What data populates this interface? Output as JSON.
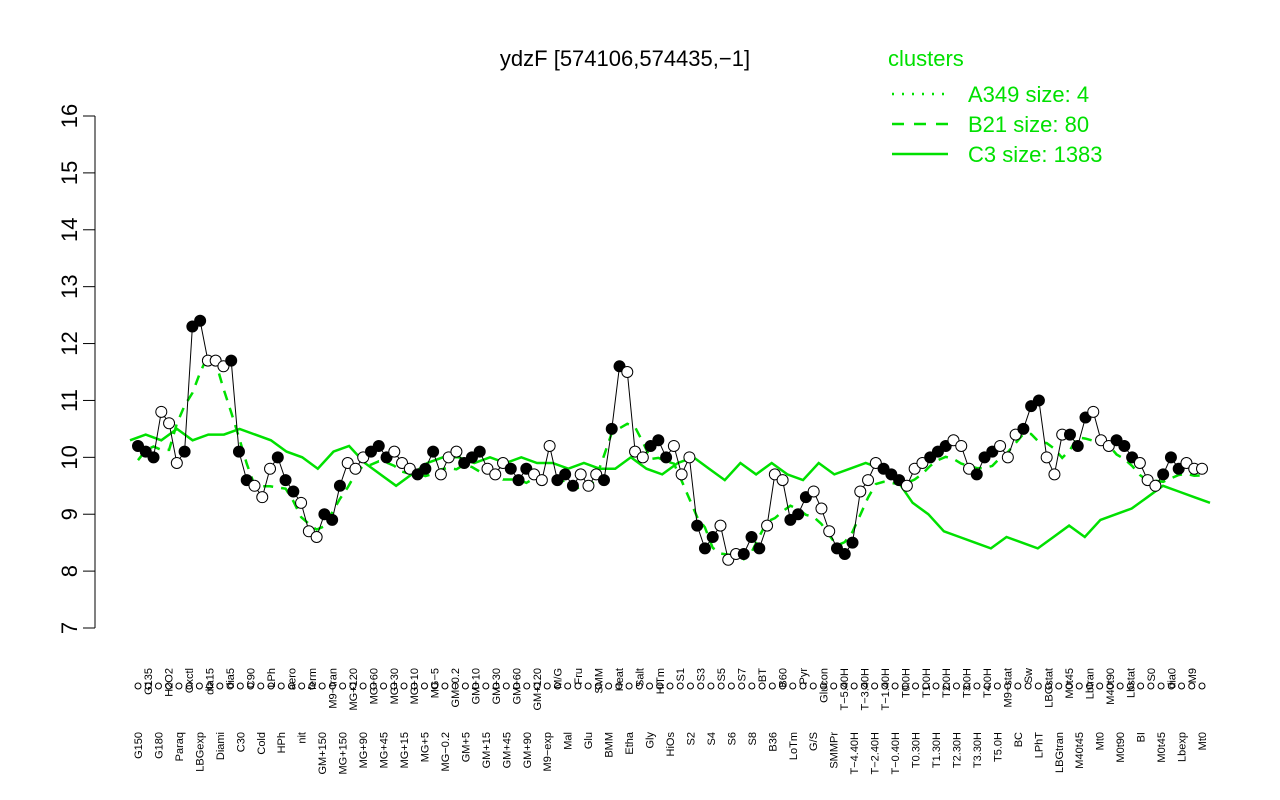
{
  "chart_data": {
    "type": "line",
    "title": "ydzF [574106,574435,−1]",
    "xlabel": "",
    "ylabel": "",
    "ylim": [
      7,
      16
    ],
    "yticks": [
      7,
      8,
      9,
      10,
      11,
      12,
      13,
      14,
      15,
      16
    ],
    "legend": {
      "title": "clusters",
      "placement": "top-right",
      "entries": [
        {
          "label": "A349 size: 4",
          "style": "dotted"
        },
        {
          "label": "B21 size: 80",
          "style": "dashed"
        },
        {
          "label": "C3 size: 1383",
          "style": "solid"
        }
      ]
    },
    "colors": {
      "series_line": "#00e000",
      "axis": "#000000",
      "point_stroke": "#000000"
    },
    "xtick_labels": [
      "G150",
      "G135",
      "G180",
      "H2O2",
      "Paraq",
      "Oxctl",
      "LBGexp",
      "dia15",
      "Diami",
      "dia5",
      "C30",
      "C90",
      "Cold",
      "LPh",
      "HPh",
      "aero",
      "nit",
      "ferm",
      "GM+150",
      "M9−tran",
      "MG+150",
      "MG+120",
      "MG+90",
      "MG+60",
      "MG+45",
      "MG+30",
      "MG+15",
      "MG+10",
      "MG+5",
      "MG−5",
      "MG−0.2",
      "GM−0.2",
      "GM+5",
      "GM+10",
      "GM+15",
      "GM+30",
      "GM+45",
      "GM+60",
      "GM+90",
      "GM+120",
      "M9−exp",
      "M/G",
      "Mal",
      "Fru",
      "Glu",
      "SMM",
      "BMM",
      "Heat",
      "Etha",
      "Salt",
      "Gly",
      "HiTm",
      "HiOs",
      "S1",
      "S2",
      "S3",
      "S4",
      "S5",
      "S6",
      "S7",
      "S8",
      "BT",
      "B36",
      "B60",
      "LoTm",
      "Pyr",
      "G/S",
      "Glucon",
      "SMMPr",
      "T−5.40H",
      "T−4.40H",
      "T−3.40H",
      "T−2.40H",
      "T−1.40H",
      "T−0.40H",
      "T0.0H",
      "T0.30H",
      "T1.0H",
      "T1.30H",
      "T2.0H",
      "T2.30H",
      "T3.0H",
      "T3.30H",
      "T4.0H",
      "T5.0H",
      "M9−stat",
      "BC",
      "Sw",
      "LPhT",
      "LBGstat",
      "LBGtran",
      "M0t45",
      "M40t45",
      "Lbtran",
      "Mt0",
      "M40t90",
      "M0t90",
      "Lbstat",
      "BI",
      "S0",
      "M0t45",
      "dia0",
      "Lbexp",
      "M9",
      "Mt0"
    ],
    "series": [
      {
        "name": "C3 size: 1383",
        "style": "solid",
        "x": [
          1,
          2,
          3,
          4,
          5,
          6,
          7,
          8,
          9,
          10,
          11,
          12,
          13,
          14,
          15,
          16,
          17,
          18,
          19,
          20,
          21,
          22,
          23,
          24,
          25,
          26,
          27,
          28,
          29,
          30,
          31,
          32,
          33,
          34,
          35,
          36,
          37,
          38,
          39,
          40,
          41,
          42,
          43,
          44,
          45,
          46,
          47,
          48,
          49,
          50,
          51,
          52,
          53,
          54,
          55,
          56,
          57,
          58,
          59,
          60,
          61,
          62,
          63,
          64,
          65,
          66,
          67,
          68,
          69,
          70
        ],
        "values": [
          10.3,
          10.4,
          10.3,
          10.5,
          10.3,
          10.4,
          10.4,
          10.5,
          10.4,
          10.3,
          10.1,
          10.0,
          9.8,
          10.1,
          10.2,
          9.9,
          9.7,
          9.5,
          9.7,
          9.9,
          10.0,
          10.0,
          9.9,
          10.0,
          9.9,
          10.0,
          9.9,
          9.9,
          9.8,
          9.9,
          9.8,
          9.8,
          10.0,
          9.8,
          9.7,
          9.9,
          10.0,
          9.8,
          9.6,
          9.9,
          9.7,
          9.9,
          9.7,
          9.6,
          9.9,
          9.7,
          9.8,
          9.9,
          9.8,
          9.6,
          9.2,
          9.0,
          8.7,
          8.6,
          8.5,
          8.4,
          8.6,
          8.5,
          8.4,
          8.6,
          8.8,
          8.6,
          8.9,
          9.0,
          9.1,
          9.3,
          9.5,
          9.4,
          9.3,
          9.2
        ]
      }
    ],
    "points": [
      10.2,
      10.1,
      10.0,
      10.8,
      10.6,
      9.9,
      10.1,
      12.3,
      12.4,
      11.7,
      11.7,
      11.6,
      11.7,
      10.1,
      9.6,
      9.5,
      9.3,
      9.8,
      10.0,
      9.6,
      9.4,
      9.2,
      8.7,
      8.6,
      9.0,
      8.9,
      9.5,
      9.9,
      9.8,
      10.0,
      10.1,
      10.2,
      10.0,
      10.1,
      9.9,
      9.8,
      9.7,
      9.8,
      10.1,
      9.7,
      10.0,
      10.1,
      9.9,
      10.0,
      10.1,
      9.8,
      9.7,
      9.9,
      9.8,
      9.6,
      9.8,
      9.7,
      9.6,
      10.2,
      9.6,
      9.7,
      9.5,
      9.7,
      9.5,
      9.7,
      9.6,
      10.5,
      11.6,
      11.5,
      10.1,
      10.0,
      10.2,
      10.3,
      10.0,
      10.2,
      9.7,
      10.0,
      8.8,
      8.4,
      8.6,
      8.8,
      8.2,
      8.3,
      8.3,
      8.6,
      8.4,
      8.8,
      9.7,
      9.6,
      8.9,
      9.0,
      9.3,
      9.4,
      9.1,
      8.7,
      8.4,
      8.3,
      8.5,
      9.4,
      9.6,
      9.9,
      9.8,
      9.7,
      9.6,
      9.5,
      9.8,
      9.9,
      10.0,
      10.1,
      10.2,
      10.3,
      10.2,
      9.8,
      9.7,
      10.0,
      10.1,
      10.2,
      10.0,
      10.4,
      10.5,
      10.9,
      11.0,
      10.0,
      9.7,
      10.4,
      10.4,
      10.2,
      10.7,
      10.8,
      10.3,
      10.2,
      10.3,
      10.2,
      10.0,
      9.9,
      9.6,
      9.5,
      9.7,
      10.0,
      9.8,
      9.9,
      9.8,
      9.8
    ]
  }
}
